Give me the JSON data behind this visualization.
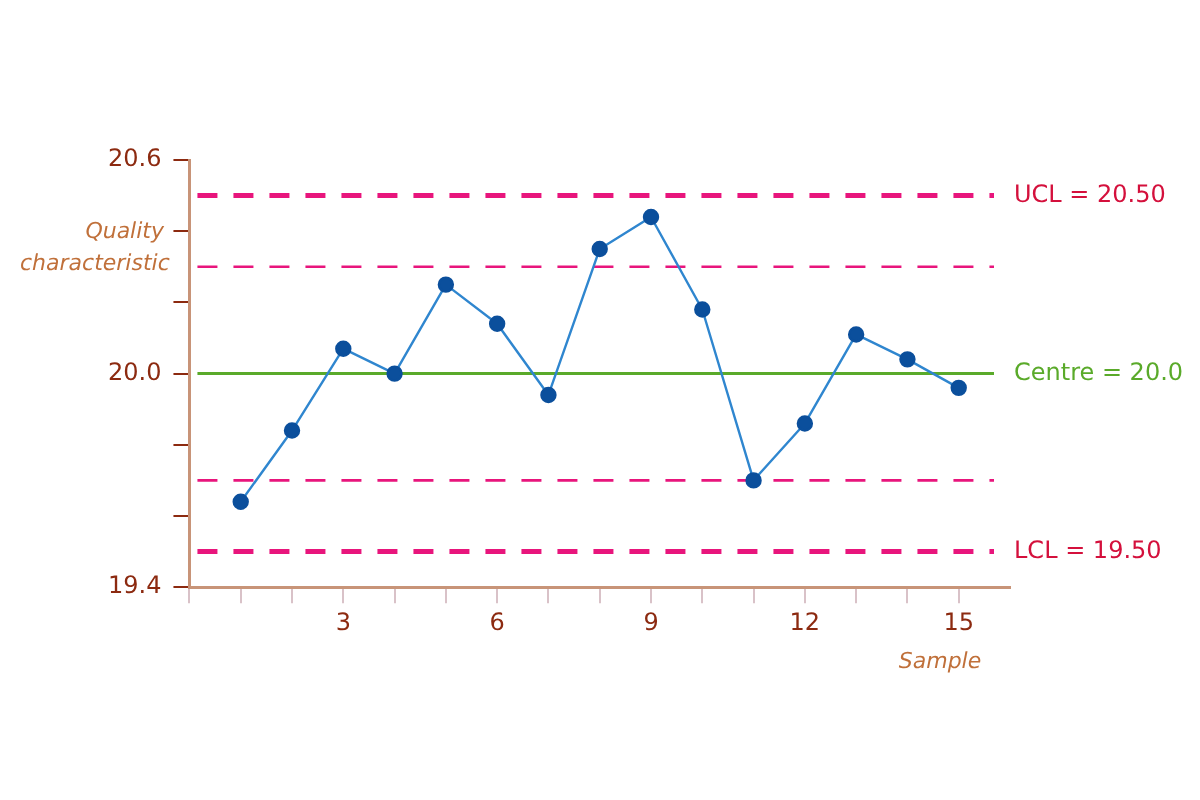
{
  "chart_data": {
    "type": "line",
    "xlabel": "Sample",
    "ylabel": "Quality characteristic",
    "x": [
      1,
      2,
      3,
      4,
      5,
      6,
      7,
      8,
      9,
      10,
      11,
      12,
      13,
      14,
      15
    ],
    "series": [
      {
        "color": "#2f86cf",
        "values": [
          19.64,
          19.84,
          20.07,
          20.0,
          20.25,
          20.14,
          19.94,
          20.35,
          20.44,
          20.18,
          19.7,
          19.86,
          20.11,
          20.04,
          19.96
        ]
      }
    ],
    "xlim": [
      0,
      16
    ],
    "xticks": [
      {
        "value": 0,
        "label": null
      },
      {
        "value": 1,
        "label": null
      },
      {
        "value": 2,
        "label": null
      },
      3,
      {
        "value": 4,
        "label": null
      },
      {
        "value": 5,
        "label": null
      },
      6,
      {
        "value": 7,
        "label": null
      },
      {
        "value": 8,
        "label": null
      },
      9,
      {
        "value": 10,
        "label": null
      },
      {
        "value": 11,
        "label": null
      },
      12,
      {
        "value": 13,
        "label": null
      },
      {
        "value": 14,
        "label": null
      },
      15
    ],
    "ylim": [
      19.4,
      20.6
    ],
    "yticks": [
      {
        "value": 19.4,
        "label": "19.4"
      },
      {
        "value": 19.6,
        "label": null
      },
      {
        "value": 19.8,
        "label": null
      },
      {
        "value": 20.0,
        "label": "20.0"
      },
      {
        "value": 20.2,
        "label": null
      },
      {
        "value": 20.4,
        "label": null
      },
      {
        "value": 20.6,
        "label": "20.6"
      }
    ],
    "ref_lines": [
      {
        "axis": "y",
        "value": 20.5,
        "label": "UCL = 20.50",
        "color": "#e8157c",
        "line_style": "dashed"
      },
      {
        "axis": "y",
        "value": 20.3,
        "label": null,
        "color": "#e8157c",
        "line_style": "dashed"
      },
      {
        "axis": "y",
        "value": 20.0,
        "label": "Centre = 20.0",
        "color": "#5aaa2a",
        "line_style": "solid"
      },
      {
        "axis": "y",
        "value": 19.7,
        "label": null,
        "color": "#e8157c",
        "line_style": "dashed"
      },
      {
        "axis": "y",
        "value": 19.5,
        "label": "LCL = 19.50",
        "color": "#e8157c",
        "line_style": "dashed"
      }
    ],
    "grid": false,
    "legend": false,
    "marker": "circle",
    "line_style": "solid"
  }
}
